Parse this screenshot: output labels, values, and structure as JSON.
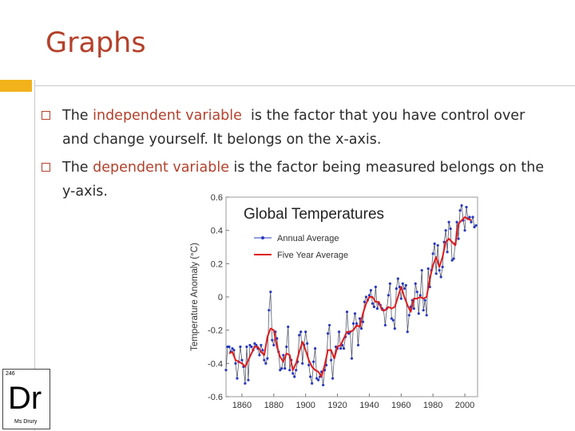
{
  "slide": {
    "title": "Graphs",
    "bullets": [
      {
        "before": "The ",
        "highlight": "independent variable",
        "after": "  is the factor that you have control over and change yourself. It belongs on the x-axis."
      },
      {
        "before": "The ",
        "highlight": "dependent variable",
        "after": " is the factor being measured belongs on the y-axis."
      }
    ]
  },
  "badge": {
    "number": "246",
    "symbol": "Dr",
    "name": "Ms Drury"
  },
  "chart_data": {
    "type": "line",
    "title": "Global Temperatures",
    "y_label": "Temperature Anomaly (°C)",
    "xlim": [
      1850,
      2008
    ],
    "xticks": [
      1860,
      1880,
      1900,
      1920,
      1940,
      1960,
      1980,
      2000
    ],
    "ylim": [
      -0.6,
      0.6
    ],
    "yticks": [
      0.6,
      0.4,
      0.2,
      0,
      -0.2,
      -0.4,
      -0.6
    ],
    "series": [
      {
        "name": "Annual Average",
        "color": "#2838c0",
        "x": [
          1850,
          1851,
          1852,
          1853,
          1854,
          1855,
          1856,
          1857,
          1858,
          1859,
          1860,
          1861,
          1862,
          1863,
          1864,
          1865,
          1866,
          1867,
          1868,
          1869,
          1870,
          1871,
          1872,
          1873,
          1874,
          1875,
          1876,
          1877,
          1878,
          1879,
          1880,
          1881,
          1882,
          1883,
          1884,
          1885,
          1886,
          1887,
          1888,
          1889,
          1890,
          1891,
          1892,
          1893,
          1894,
          1895,
          1896,
          1897,
          1898,
          1899,
          1900,
          1901,
          1902,
          1903,
          1904,
          1905,
          1906,
          1907,
          1908,
          1909,
          1910,
          1911,
          1912,
          1913,
          1914,
          1915,
          1916,
          1917,
          1918,
          1919,
          1920,
          1921,
          1922,
          1923,
          1924,
          1925,
          1926,
          1927,
          1928,
          1929,
          1930,
          1931,
          1932,
          1933,
          1934,
          1935,
          1936,
          1937,
          1938,
          1939,
          1940,
          1941,
          1942,
          1943,
          1944,
          1945,
          1946,
          1947,
          1948,
          1949,
          1950,
          1951,
          1952,
          1953,
          1954,
          1955,
          1956,
          1957,
          1958,
          1959,
          1960,
          1961,
          1962,
          1963,
          1964,
          1965,
          1966,
          1967,
          1968,
          1969,
          1970,
          1971,
          1972,
          1973,
          1974,
          1975,
          1976,
          1977,
          1978,
          1979,
          1980,
          1981,
          1982,
          1983,
          1984,
          1985,
          1986,
          1987,
          1988,
          1989,
          1990,
          1991,
          1992,
          1993,
          1994,
          1995,
          1996,
          1997,
          1998,
          1999,
          2000,
          2001,
          2002,
          2003,
          2004,
          2005,
          2006,
          2007
        ],
        "values": [
          -0.44,
          -0.3,
          -0.3,
          -0.33,
          -0.31,
          -0.32,
          -0.4,
          -0.49,
          -0.39,
          -0.3,
          -0.38,
          -0.42,
          -0.52,
          -0.3,
          -0.5,
          -0.29,
          -0.3,
          -0.32,
          -0.28,
          -0.29,
          -0.31,
          -0.35,
          -0.29,
          -0.32,
          -0.38,
          -0.4,
          -0.37,
          -0.08,
          0.03,
          -0.26,
          -0.29,
          -0.21,
          -0.25,
          -0.33,
          -0.44,
          -0.43,
          -0.35,
          -0.43,
          -0.3,
          -0.18,
          -0.44,
          -0.38,
          -0.46,
          -0.48,
          -0.44,
          -0.39,
          -0.23,
          -0.21,
          -0.4,
          -0.29,
          -0.21,
          -0.28,
          -0.41,
          -0.48,
          -0.52,
          -0.39,
          -0.31,
          -0.49,
          -0.5,
          -0.48,
          -0.45,
          -0.53,
          -0.44,
          -0.41,
          -0.22,
          -0.17,
          -0.38,
          -0.49,
          -0.36,
          -0.3,
          -0.31,
          -0.21,
          -0.31,
          -0.29,
          -0.31,
          -0.24,
          -0.09,
          -0.22,
          -0.21,
          -0.37,
          -0.16,
          -0.1,
          -0.16,
          -0.29,
          -0.13,
          -0.19,
          -0.15,
          -0.03,
          0.0,
          -0.02,
          0.01,
          0.04,
          -0.04,
          -0.06,
          0.06,
          -0.07,
          -0.04,
          -0.05,
          -0.07,
          -0.08,
          -0.17,
          -0.07,
          0.01,
          0.08,
          -0.13,
          -0.14,
          -0.19,
          0.05,
          0.11,
          0.06,
          -0.01,
          0.08,
          0.05,
          0.07,
          -0.21,
          -0.11,
          -0.06,
          -0.02,
          -0.07,
          0.08,
          0.03,
          -0.1,
          0.01,
          0.16,
          -0.08,
          -0.02,
          -0.11,
          0.17,
          0.06,
          0.16,
          0.26,
          0.32,
          0.14,
          0.31,
          0.16,
          0.12,
          0.18,
          0.33,
          0.4,
          0.27,
          0.45,
          0.41,
          0.22,
          0.23,
          0.32,
          0.45,
          0.35,
          0.52,
          0.55,
          0.46,
          0.4,
          0.54,
          0.47,
          0.48,
          0.45,
          0.48,
          0.42,
          0.43
        ]
      },
      {
        "name": "Five Year Average",
        "color": "#e01a1a",
        "x": [
          1852,
          1854,
          1856,
          1858,
          1860,
          1862,
          1864,
          1866,
          1868,
          1870,
          1872,
          1874,
          1876,
          1878,
          1880,
          1882,
          1884,
          1886,
          1888,
          1890,
          1892,
          1894,
          1896,
          1898,
          1900,
          1902,
          1904,
          1906,
          1908,
          1910,
          1912,
          1914,
          1916,
          1918,
          1920,
          1922,
          1924,
          1926,
          1928,
          1930,
          1932,
          1934,
          1936,
          1938,
          1940,
          1942,
          1944,
          1946,
          1948,
          1950,
          1952,
          1954,
          1956,
          1958,
          1960,
          1962,
          1964,
          1966,
          1968,
          1970,
          1972,
          1974,
          1976,
          1978,
          1980,
          1982,
          1984,
          1986,
          1988,
          1990,
          1992,
          1994,
          1996,
          1998,
          2000,
          2002,
          2004
        ],
        "values": [
          -0.34,
          -0.33,
          -0.38,
          -0.39,
          -0.4,
          -0.42,
          -0.38,
          -0.34,
          -0.3,
          -0.3,
          -0.33,
          -0.35,
          -0.24,
          -0.19,
          -0.2,
          -0.3,
          -0.36,
          -0.39,
          -0.34,
          -0.35,
          -0.44,
          -0.4,
          -0.33,
          -0.27,
          -0.32,
          -0.38,
          -0.42,
          -0.44,
          -0.45,
          -0.48,
          -0.41,
          -0.32,
          -0.32,
          -0.37,
          -0.3,
          -0.29,
          -0.25,
          -0.21,
          -0.21,
          -0.2,
          -0.17,
          -0.18,
          -0.1,
          -0.04,
          0.0,
          0.0,
          -0.03,
          -0.03,
          -0.08,
          -0.08,
          -0.06,
          -0.07,
          -0.06,
          0.0,
          0.06,
          0.0,
          -0.05,
          -0.09,
          -0.01,
          -0.01,
          0.0,
          -0.01,
          0.0,
          0.11,
          0.19,
          0.24,
          0.18,
          0.24,
          0.33,
          0.35,
          0.33,
          0.31,
          0.44,
          0.46,
          0.48,
          0.47,
          0.46
        ]
      }
    ]
  }
}
